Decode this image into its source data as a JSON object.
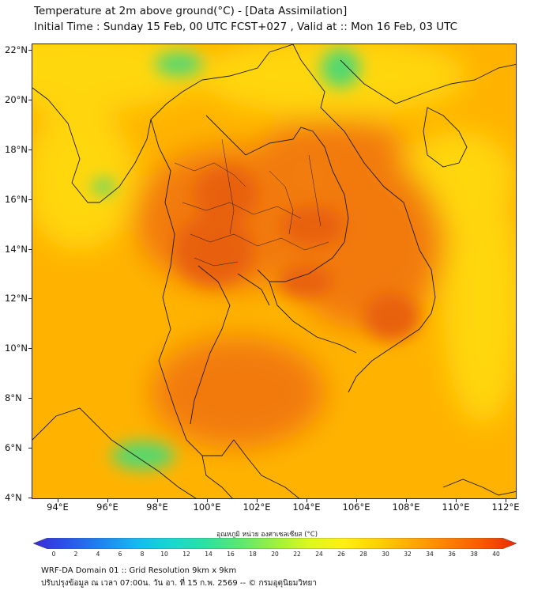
{
  "header": {
    "title_line1": "Temperature at 2m above ground(°C) - [Data Assimilation]",
    "title_line2": "Initial Time : Sunday 15 Feb, 00 UTC FCST+027 , Valid at :: Mon 16 Feb, 03 UTC"
  },
  "map": {
    "lat_labels": [
      "22°N",
      "20°N",
      "18°N",
      "16°N",
      "14°N",
      "12°N",
      "10°N",
      "8°N",
      "6°N",
      "4°N"
    ],
    "lon_labels": [
      "94°E",
      "96°E",
      "98°E",
      "100°E",
      "102°E",
      "104°E",
      "106°E",
      "108°E",
      "110°E",
      "112°E"
    ],
    "background_color": "#ffb300",
    "warm_color": "#f27a0c",
    "hot_color": "#e8600a",
    "cool_color": "#54d870",
    "mild_color": "#ffd70a",
    "border_color": "#1a1a1a"
  },
  "colorbar": {
    "title": "อุณหภูมิ หน่วย องศาเซลเซียส (°C)",
    "ticks": [
      "0",
      "2",
      "4",
      "6",
      "8",
      "10",
      "12",
      "14",
      "16",
      "18",
      "20",
      "22",
      "24",
      "26",
      "28",
      "30",
      "32",
      "34",
      "36",
      "38",
      "40"
    ],
    "colors": [
      "#3a2bd8",
      "#2a55e8",
      "#1e86f0",
      "#18b8f0",
      "#18d8d0",
      "#2ee0a0",
      "#5ce870",
      "#9cf040",
      "#dcf81c",
      "#fff010",
      "#ffd000",
      "#ffa800",
      "#ff8000",
      "#f85a00",
      "#e82a00"
    ]
  },
  "footer": {
    "line1": "WRF-DA Domain 01 :: Grid Resolution 9km x 9km",
    "line2": "ปรับปรุงข้อมูล ณ เวลา 07:00น. วัน อา. ที่ 15 ก.พ. 2569 -- © กรมอุตุนิยมวิทยา"
  }
}
